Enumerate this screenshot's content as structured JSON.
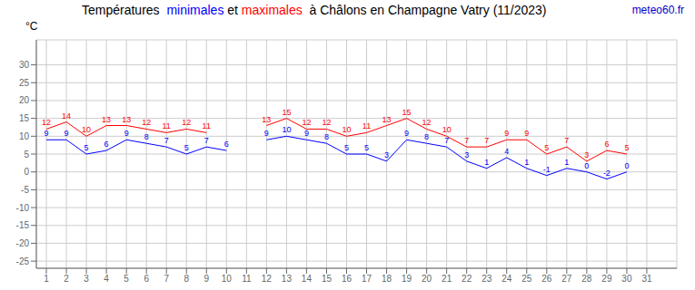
{
  "chart_data": {
    "type": "line",
    "title": "Températures  minimales et maximales  à Châlons en Champagne Vatry (11/2023)",
    "y_label": "°C",
    "annotations": [
      {
        "text": "meteo60.fr",
        "color": "#0000cc"
      }
    ],
    "x": [
      1,
      2,
      3,
      4,
      5,
      6,
      7,
      8,
      9,
      10,
      11,
      12,
      13,
      14,
      15,
      16,
      17,
      18,
      19,
      20,
      21,
      22,
      23,
      24,
      25,
      26,
      27,
      28,
      29,
      30,
      31
    ],
    "series": [
      {
        "name": "minimales",
        "color": "#0000ff",
        "values": [
          9,
          9,
          5,
          6,
          9,
          8,
          7,
          5,
          7,
          6,
          null,
          9,
          10,
          9,
          8,
          5,
          5,
          3,
          9,
          8,
          7,
          3,
          1,
          4,
          1,
          -1,
          1,
          0,
          -2,
          0,
          null
        ]
      },
      {
        "name": "maximales",
        "color": "#ff0000",
        "values": [
          12,
          14,
          10,
          13,
          13,
          12,
          11,
          12,
          11,
          null,
          null,
          13,
          15,
          12,
          12,
          10,
          11,
          13,
          15,
          12,
          10,
          7,
          7,
          9,
          9,
          5,
          7,
          3,
          6,
          5,
          null
        ]
      }
    ],
    "xlim": [
      0.5,
      32.5
    ],
    "xticks": [
      1,
      2,
      3,
      4,
      5,
      6,
      7,
      8,
      9,
      10,
      11,
      12,
      13,
      14,
      15,
      16,
      17,
      18,
      19,
      20,
      21,
      22,
      23,
      24,
      25,
      26,
      27,
      28,
      29,
      30,
      31
    ],
    "ylim": [
      -27,
      37
    ],
    "yticks": [
      -25,
      -20,
      -15,
      -10,
      -5,
      0,
      5,
      10,
      15,
      20,
      25,
      30
    ],
    "grid": true,
    "data_labels": true
  }
}
